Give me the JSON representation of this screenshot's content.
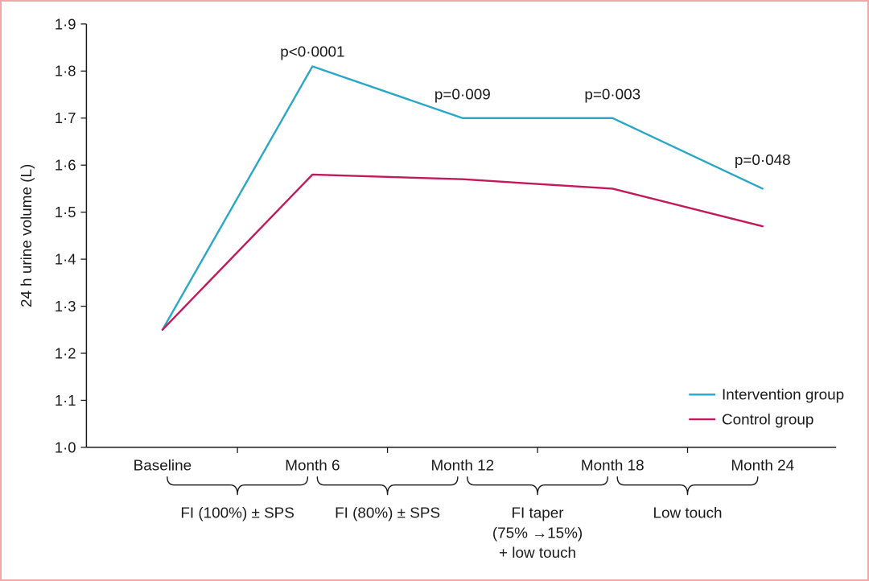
{
  "figure": {
    "frame_color": "#f0a8a8",
    "text_color": "#1a1a1a"
  },
  "chart_data": {
    "type": "line",
    "title": "",
    "xlabel": "",
    "ylabel": "24 h urine volume (L)",
    "categories": [
      "Baseline",
      "Month 6",
      "Month 12",
      "Month 18",
      "Month 24"
    ],
    "ylim": [
      1.0,
      1.9
    ],
    "ytick_step": 0.1,
    "ytick_labels": [
      "1·0",
      "1·1",
      "1·2",
      "1·3",
      "1·4",
      "1·5",
      "1·6",
      "1·7",
      "1·8",
      "1·9"
    ],
    "grid": false,
    "series": [
      {
        "name": "Intervention group",
        "color": "#2aa7c7",
        "values": [
          1.25,
          1.81,
          1.7,
          1.7,
          1.55
        ]
      },
      {
        "name": "Control group",
        "color": "#c01a5b",
        "values": [
          1.25,
          1.58,
          1.57,
          1.55,
          1.47
        ]
      }
    ],
    "annotations": [
      {
        "label": "p<0·0001",
        "x_index": 1,
        "y": 1.83
      },
      {
        "label": "p=0·009",
        "x_index": 2,
        "y": 1.74
      },
      {
        "label": "p=0·003",
        "x_index": 3,
        "y": 1.74
      },
      {
        "label": "p=0·048",
        "x_index": 4,
        "y": 1.6
      }
    ],
    "legend": {
      "position": "bottom-right",
      "entries": [
        "Intervention group",
        "Control group"
      ]
    },
    "phase_brackets": [
      {
        "from_index": 0,
        "to_index": 1,
        "label_lines": [
          "FI (100%) ± SPS"
        ]
      },
      {
        "from_index": 1,
        "to_index": 2,
        "label_lines": [
          "FI (80%) ± SPS"
        ]
      },
      {
        "from_index": 2,
        "to_index": 3,
        "label_lines": [
          "FI taper",
          "(75% →15%)",
          "+ low touch"
        ]
      },
      {
        "from_index": 3,
        "to_index": 4,
        "label_lines": [
          "Low touch"
        ]
      }
    ]
  }
}
